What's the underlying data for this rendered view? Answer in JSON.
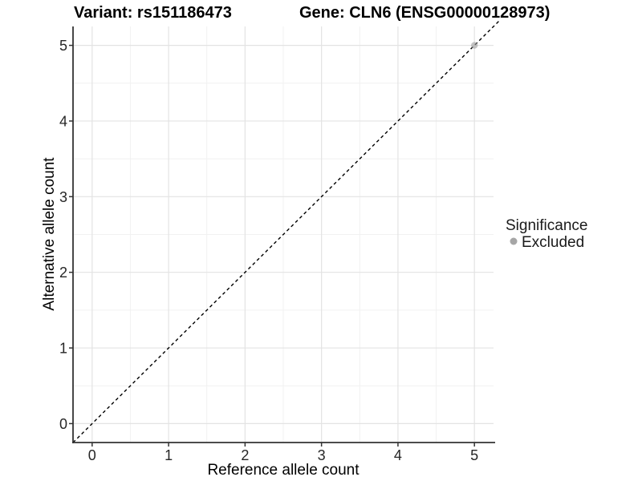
{
  "chart_data": {
    "type": "scatter",
    "titles": {
      "variant": "Variant: rs151186473",
      "gene": "Gene: CLN6 (ENSG00000128973)"
    },
    "xlabel": "Reference allele count",
    "ylabel": "Alternative allele count",
    "xlim": [
      -0.25,
      5.25
    ],
    "ylim": [
      -0.25,
      5.25
    ],
    "xticks": [
      0,
      1,
      2,
      3,
      4,
      5
    ],
    "yticks": [
      0,
      1,
      2,
      3,
      4,
      5
    ],
    "minor_xticks": [
      0.5,
      1.5,
      2.5,
      3.5,
      4.5
    ],
    "minor_yticks": [
      0.5,
      1.5,
      2.5,
      3.5,
      4.5
    ],
    "grid": true,
    "identity_line": {
      "slope": 1,
      "intercept": 0,
      "style": "dashed",
      "color": "#000000",
      "x_start": -0.25,
      "x_end": 5.32
    },
    "points": [
      {
        "x": 5,
        "y": 5,
        "significance": "Excluded"
      }
    ],
    "point_style": {
      "color": "#9f9f9f",
      "opacity": 0.6,
      "radius": 4.2
    },
    "legend": {
      "title": "Significance",
      "position": "right",
      "items": [
        {
          "label": "Excluded",
          "color": "#a6a6a6"
        }
      ]
    },
    "colors": {
      "grid_major": "#e3e3e3",
      "grid_minor": "#f1f1f1",
      "axis_line": "#333333",
      "tick_mark": "#333333"
    }
  }
}
